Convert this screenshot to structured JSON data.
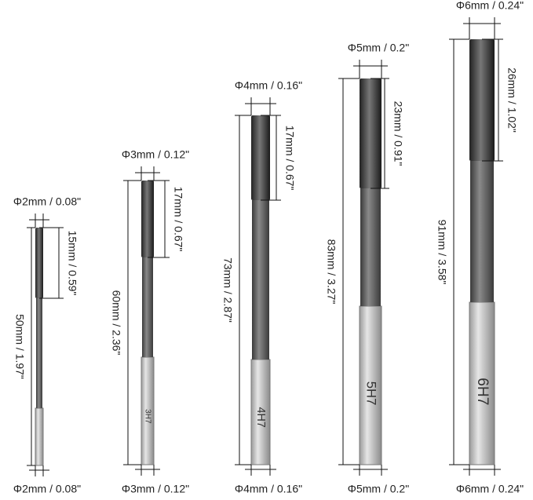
{
  "reamers": [
    {
      "top_diameter": "Φ2mm / 0.08\"",
      "flute_length": "15mm / 0.59\"",
      "total_length": "50mm / 1.97\"",
      "bottom_diameter": "Φ2mm / 0.08\""
    },
    {
      "top_diameter": "Φ3mm / 0.12\"",
      "flute_length": "17mm / 0.67\"",
      "total_length": "60mm / 2.36\"",
      "bottom_diameter": "Φ3mm / 0.12\"",
      "marking": "3H7"
    },
    {
      "top_diameter": "Φ4mm / 0.16\"",
      "flute_length": "17mm / 0.67\"",
      "total_length": "73mm / 2.87\"",
      "bottom_diameter": "Φ4mm / 0.16\"",
      "marking": "4H7"
    },
    {
      "top_diameter": "Φ5mm / 0.2\"",
      "flute_length": "23mm / 0.91\"",
      "total_length": "83mm / 3.27\"",
      "bottom_diameter": "Φ5mm / 0.2\"",
      "marking": "5H7"
    },
    {
      "top_diameter": "Φ6mm / 0.24\"",
      "flute_length": "26mm / 1.02\"",
      "total_length": "91mm / 3.58\"",
      "bottom_diameter": "Φ6mm / 0.24\"",
      "marking": "6H7"
    }
  ]
}
